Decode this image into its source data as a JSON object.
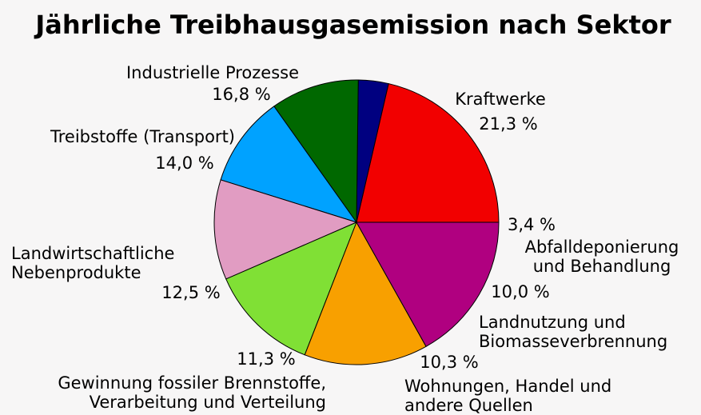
{
  "chart_data": {
    "type": "pie",
    "title": "Jährliche Treibhausgasemission nach Sektor",
    "unit": "%",
    "slices": [
      {
        "label_lines": [
          "Kraftwerke"
        ],
        "value": 21.3,
        "value_label": "21,3 %",
        "color": "#f20000"
      },
      {
        "label_lines": [
          "Abfalldeponierung",
          "und Behandlung"
        ],
        "value": 3.4,
        "value_label": "3,4 %",
        "color": "#000080"
      },
      {
        "label_lines": [
          "Landnutzung und",
          "Biomasseverbrennung"
        ],
        "value": 10.0,
        "value_label": "10,0 %",
        "color": "#006800"
      },
      {
        "label_lines": [
          "Wohnungen, Handel und",
          "andere Quellen"
        ],
        "value": 10.3,
        "value_label": "10,3 %",
        "color": "#00a2ff"
      },
      {
        "label_lines": [
          "Gewinnung fossiler Brennstoffe,",
          "Verarbeitung und Verteilung"
        ],
        "value": 11.3,
        "value_label": "11,3 %",
        "color": "#e19cc2"
      },
      {
        "label_lines": [
          "Landwirtschaftliche",
          "Nebenprodukte"
        ],
        "value": 12.5,
        "value_label": "12,5 %",
        "color": "#80e035"
      },
      {
        "label_lines": [
          "Treibstoffe (Transport)"
        ],
        "value": 14.0,
        "value_label": "14,0 %",
        "color": "#f8a000"
      },
      {
        "label_lines": [
          "Industrielle Prozesse"
        ],
        "value": 16.8,
        "value_label": "16,8 %",
        "color": "#b00080"
      }
    ]
  }
}
